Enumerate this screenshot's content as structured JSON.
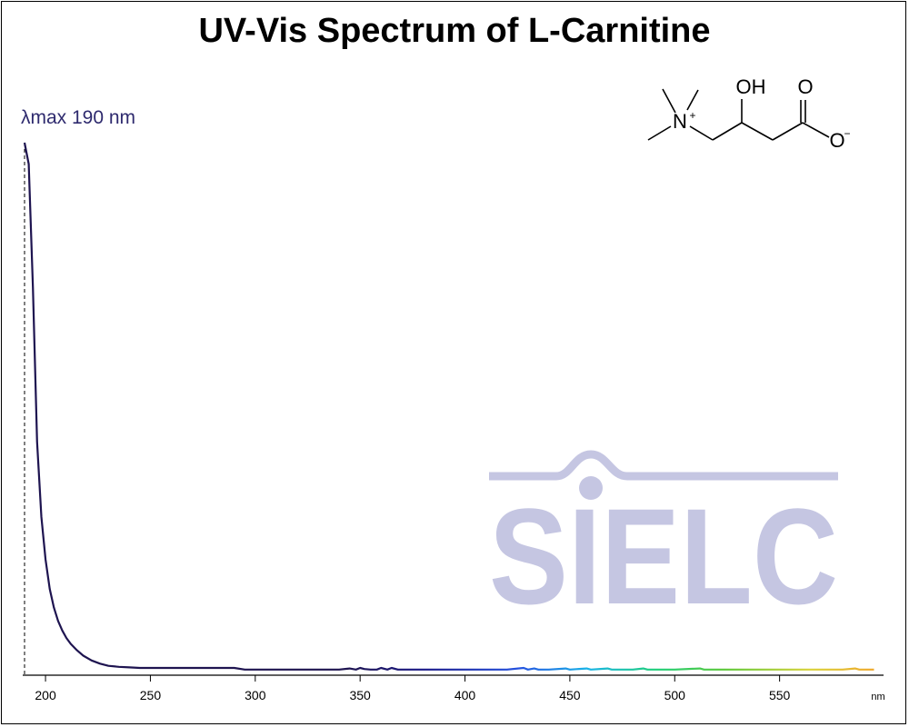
{
  "chart_data": {
    "type": "line",
    "title": "UV-Vis Spectrum of L-Carnitine",
    "xlabel": "nm",
    "ylabel": "",
    "xlim": [
      190,
      600
    ],
    "ylim": [
      0,
      1
    ],
    "xticks": [
      200,
      250,
      300,
      350,
      400,
      450,
      500,
      550
    ],
    "grid": false,
    "annotation": {
      "label": "λmax  190 nm",
      "x": 190
    },
    "series": [
      {
        "x": [
          190,
          192,
          194,
          196,
          198,
          200,
          202,
          204,
          206,
          208,
          210,
          212,
          215,
          218,
          222,
          226,
          230,
          235,
          240,
          245,
          250,
          260,
          270,
          280,
          290,
          295,
          300,
          320,
          340,
          345,
          348,
          350,
          352,
          355,
          358,
          360,
          363,
          365,
          368,
          370,
          380,
          400,
          420,
          428,
          430,
          433,
          435,
          440,
          448,
          450,
          458,
          460,
          468,
          470,
          480,
          485,
          487,
          490,
          500,
          512,
          514,
          516,
          520,
          540,
          560,
          580,
          586,
          588,
          590,
          595
        ],
        "values": [
          1.0,
          0.96,
          0.73,
          0.44,
          0.3,
          0.22,
          0.165,
          0.13,
          0.105,
          0.087,
          0.073,
          0.062,
          0.05,
          0.04,
          0.031,
          0.025,
          0.021,
          0.019,
          0.018,
          0.017,
          0.017,
          0.017,
          0.017,
          0.017,
          0.017,
          0.014,
          0.014,
          0.014,
          0.014,
          0.016,
          0.014,
          0.017,
          0.015,
          0.014,
          0.014,
          0.017,
          0.014,
          0.017,
          0.014,
          0.014,
          0.014,
          0.014,
          0.014,
          0.017,
          0.014,
          0.016,
          0.014,
          0.014,
          0.016,
          0.014,
          0.016,
          0.014,
          0.016,
          0.014,
          0.014,
          0.016,
          0.014,
          0.014,
          0.014,
          0.016,
          0.014,
          0.014,
          0.014,
          0.014,
          0.014,
          0.014,
          0.016,
          0.014,
          0.014,
          0.014
        ]
      }
    ]
  },
  "structure": {
    "label_oh": "OH",
    "label_o": "O",
    "label_o_minus": "O",
    "label_n": "N",
    "charge_plus": "+",
    "charge_minus": "−"
  },
  "watermark": {
    "text": "SIELC",
    "color": "#c5c6e2"
  },
  "colors": {
    "axis": "#000000",
    "annotation": "#2e2a6e"
  }
}
